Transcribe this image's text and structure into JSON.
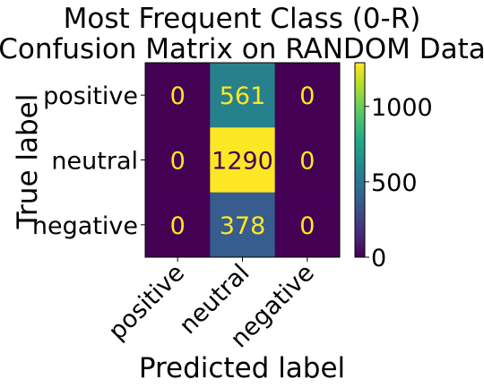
{
  "chart_data": {
    "type": "heatmap",
    "title": "Most Frequent Class (0-R)\nConfusion Matrix on RANDOM Data",
    "xlabel": "Predicted label",
    "ylabel": "True label",
    "x_categories": [
      "positive",
      "neutral",
      "negative"
    ],
    "y_categories": [
      "positive",
      "neutral",
      "negative"
    ],
    "values": [
      [
        0,
        561,
        0
      ],
      [
        0,
        1290,
        0
      ],
      [
        0,
        378,
        0
      ]
    ],
    "colormap": "viridis",
    "color_range": [
      0,
      1290
    ],
    "colorbar_ticks": [
      0,
      500,
      1000
    ],
    "cell_text_colors": {
      "on_dark": "#fde725",
      "on_light": "#440154"
    },
    "grid": false
  }
}
